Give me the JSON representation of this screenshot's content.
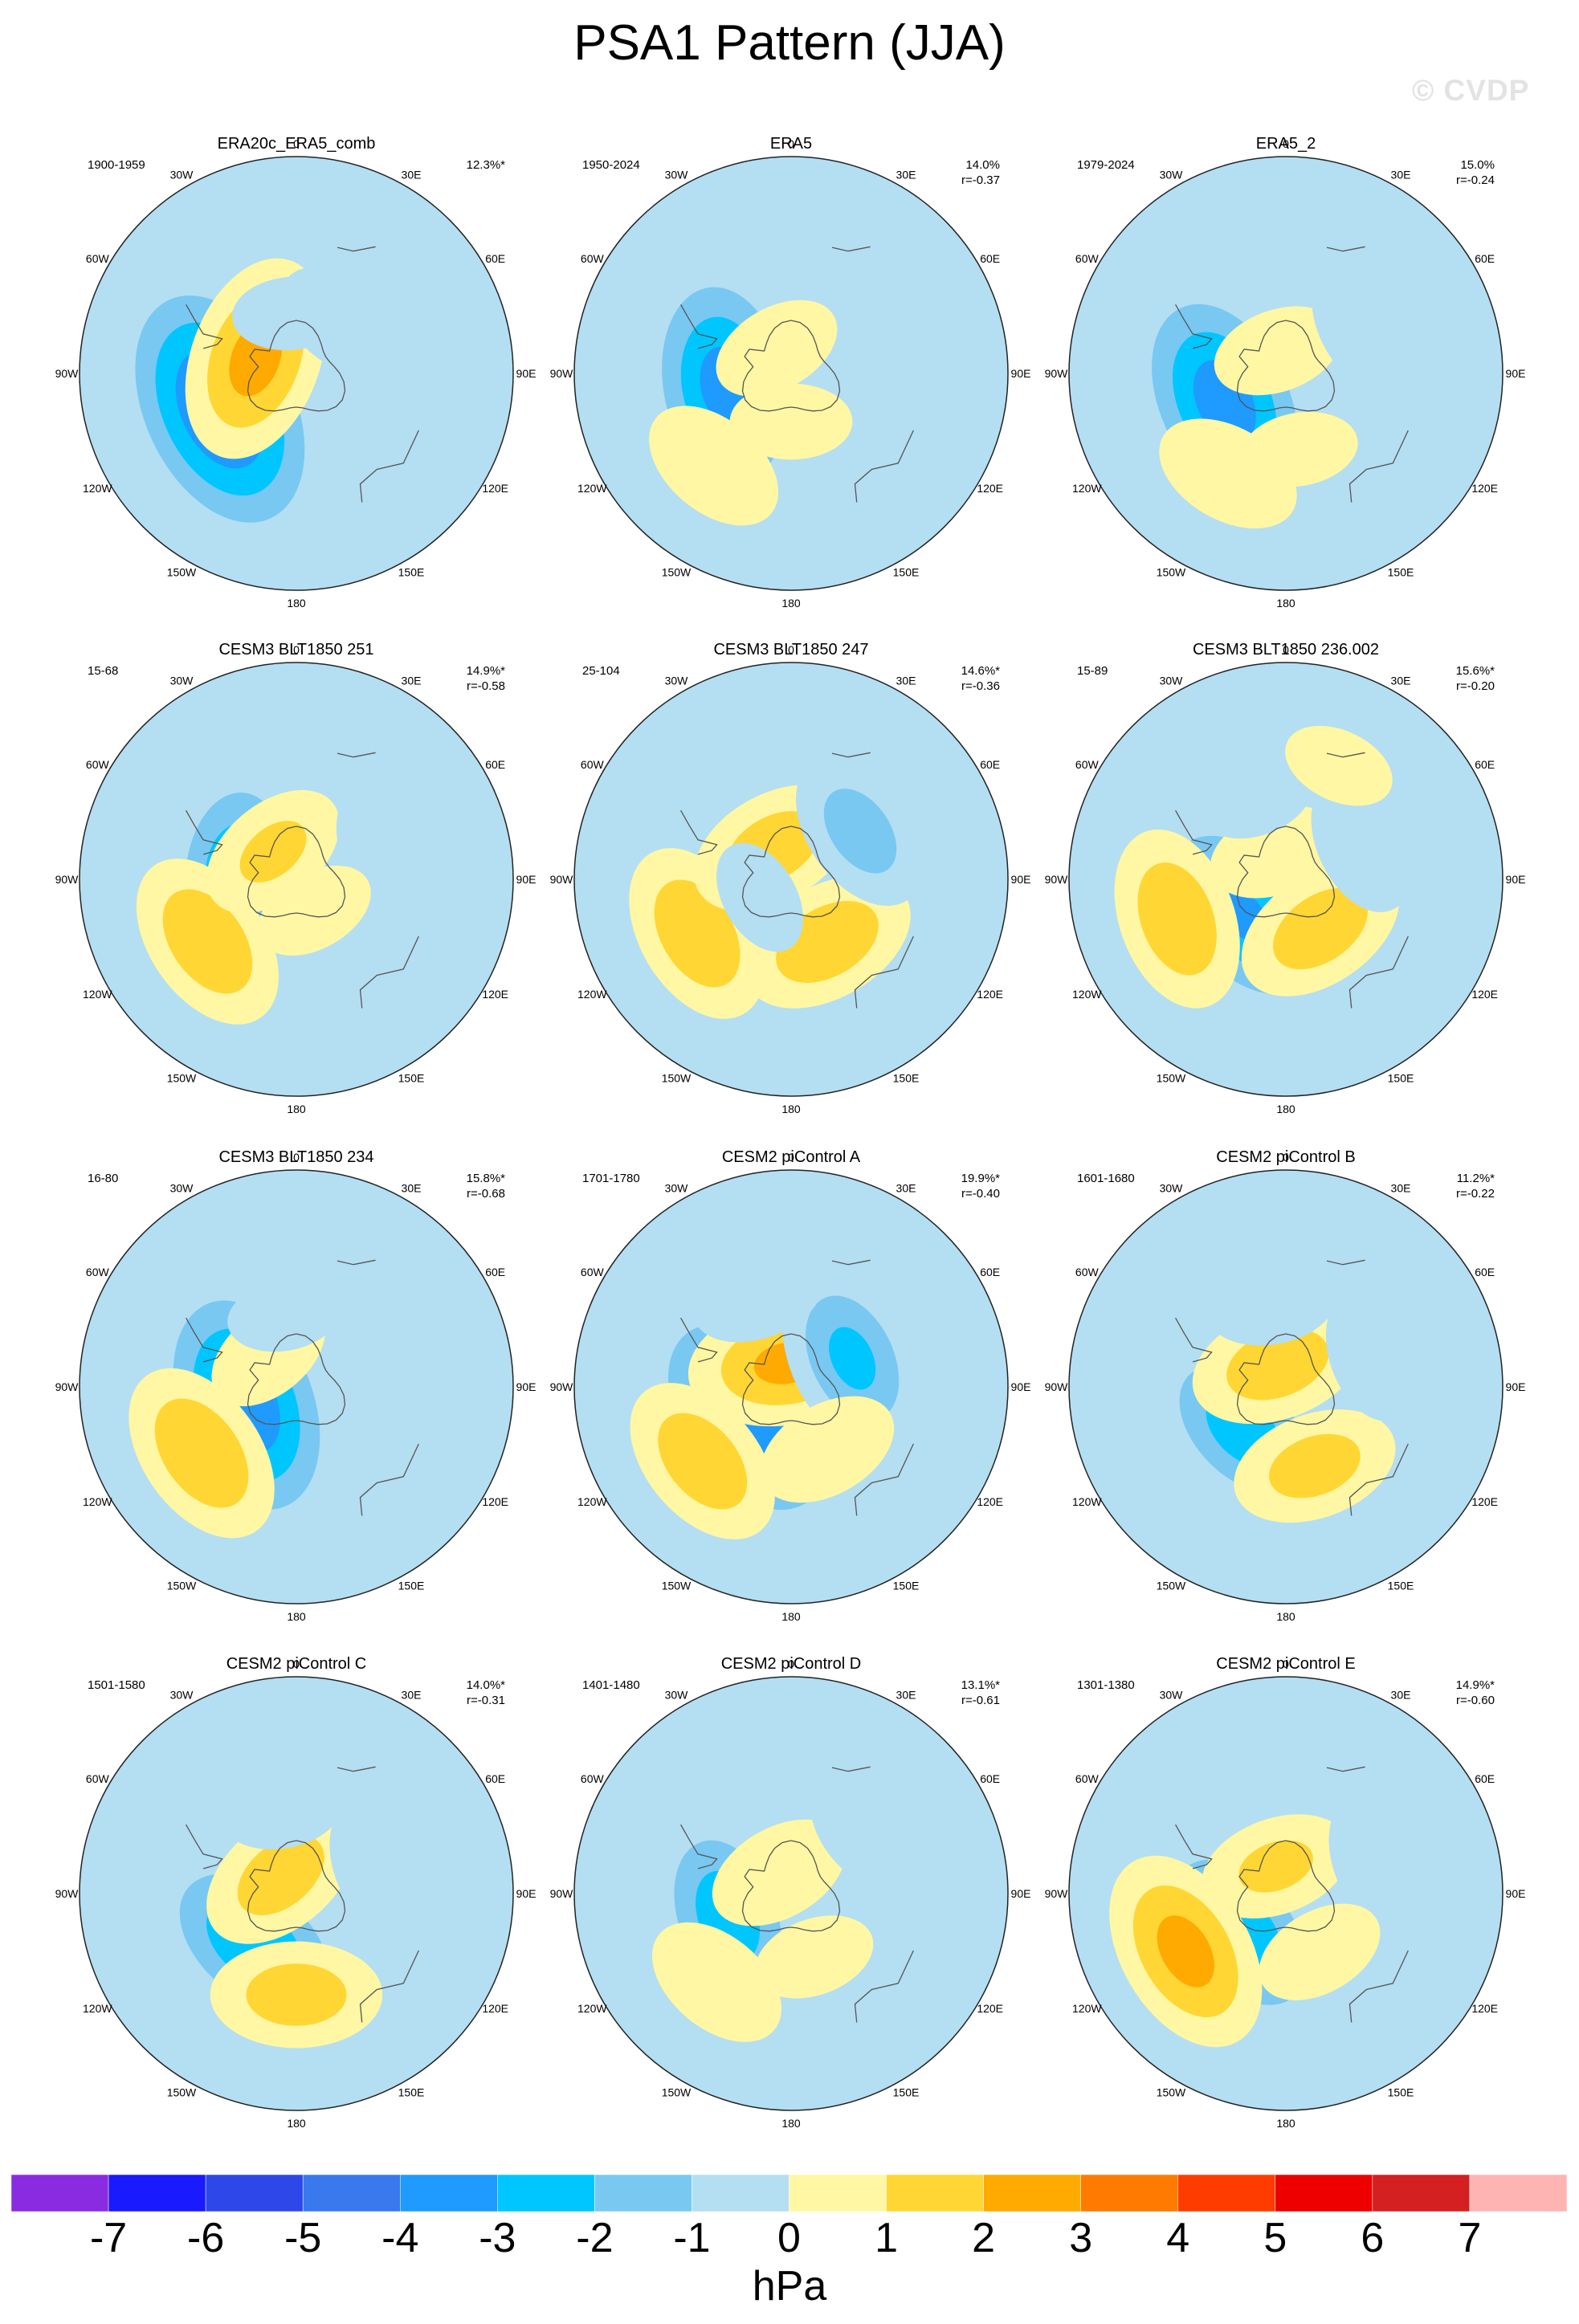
{
  "title": "PSA1 Pattern (JJA)",
  "watermark": "© CVDP",
  "chart_data": {
    "type": "contour",
    "projection": "south polar stereographic",
    "variable": "sea level pressure anomaly",
    "units": "hPa",
    "contour_levels": [
      -7,
      -6,
      -5,
      -4,
      -3,
      -2,
      -1,
      0,
      1,
      2,
      3,
      4,
      5,
      6,
      7
    ],
    "colorbar_colors": [
      "#8a2be2",
      "#1a1aff",
      "#2e47e8",
      "#3a78ee",
      "#1f9aff",
      "#00c6ff",
      "#78c8f2",
      "#b4def2",
      "#fff7a3",
      "#ffd633",
      "#ffaa00",
      "#ff7a00",
      "#ff3c00",
      "#ee0000",
      "#d42020",
      "#ffb4b4"
    ],
    "colorbar_tick_labels": [
      "-7",
      "-6",
      "-5",
      "-4",
      "-3",
      "-2",
      "-1",
      "0",
      "1",
      "2",
      "3",
      "4",
      "5",
      "6",
      "7"
    ],
    "colorbar_label": "hPa",
    "meridian_labels": {
      "deg0": "0",
      "deg30e": "30E",
      "deg60e": "60E",
      "deg90e": "90E",
      "deg120e": "120E",
      "deg150e": "150E",
      "deg180": "180",
      "deg150w": "150W",
      "deg120w": "120W",
      "deg90w": "90W",
      "deg60w": "60W",
      "deg30w": "30W"
    },
    "panels": [
      {
        "title": "ERA20c_ERA5_comb",
        "years": "1900-1959",
        "pct": "12.3%*",
        "r": "",
        "features": [
          {
            "lon": -115,
            "lat": -55,
            "peak": -5.2
          },
          {
            "lon": -70,
            "lat": -72,
            "peak": 3.2
          },
          {
            "lon": 40,
            "lat": -62,
            "peak": -1.6
          },
          {
            "lon": -5,
            "lat": -65,
            "peak": -1.2
          },
          {
            "lon": 100,
            "lat": -42,
            "peak": 0.7
          },
          {
            "lon": 170,
            "lat": -40,
            "peak": 0.6
          }
        ]
      },
      {
        "title": "ERA5",
        "years": "1950-2024",
        "pct": "14.0%",
        "r": "r=-0.37",
        "features": [
          {
            "lon": -100,
            "lat": -62,
            "peak": -4.3
          },
          {
            "lon": -140,
            "lat": -40,
            "peak": 1.9
          },
          {
            "lon": -30,
            "lat": -78,
            "peak": 1.5
          },
          {
            "lon": 70,
            "lat": -50,
            "peak": -1.5
          },
          {
            "lon": -180,
            "lat": -70,
            "peak": 1.3
          }
        ]
      },
      {
        "title": "ERA5_2",
        "years": "1979-2024",
        "pct": "15.0%",
        "r": "r=-0.24",
        "features": [
          {
            "lon": -115,
            "lat": -62,
            "peak": -4.5
          },
          {
            "lon": -150,
            "lat": -42,
            "peak": 1.9
          },
          {
            "lon": -20,
            "lat": -80,
            "peak": 1.5
          },
          {
            "lon": 60,
            "lat": -52,
            "peak": -1.8
          },
          {
            "lon": 170,
            "lat": -58,
            "peak": 1.2
          },
          {
            "lon": 10,
            "lat": -36,
            "peak": 0.7
          }
        ]
      },
      {
        "title": "CESM3 BLT1850 251",
        "years": "15-68",
        "pct": "14.9%*",
        "r": "r=-0.58",
        "features": [
          {
            "lon": -85,
            "lat": -65,
            "peak": -3.6
          },
          {
            "lon": -125,
            "lat": -45,
            "peak": 2.7
          },
          {
            "lon": -40,
            "lat": -75,
            "peak": 2.0
          },
          {
            "lon": 70,
            "lat": -52,
            "peak": -1.6
          },
          {
            "lon": 150,
            "lat": -75,
            "peak": 1.3
          },
          {
            "lon": 170,
            "lat": -48,
            "peak": 0.7
          }
        ]
      },
      {
        "title": "CESM3 BLT1850 247",
        "years": "25-104",
        "pct": "14.6%*",
        "r": "r=-0.36",
        "features": [
          {
            "lon": -150,
            "lat": -68,
            "peak": -3.2
          },
          {
            "lon": -120,
            "lat": -45,
            "peak": 2.7
          },
          {
            "lon": 150,
            "lat": -60,
            "peak": 2.6
          },
          {
            "lon": -30,
            "lat": -75,
            "peak": 2.4
          },
          {
            "lon": 55,
            "lat": -55,
            "peak": -2.3
          },
          {
            "lon": -120,
            "lat": -75,
            "peak": -1.2
          }
        ]
      },
      {
        "title": "CESM3 BLT1850 236.002",
        "years": "15-89",
        "pct": "15.6%*",
        "r": "r=-0.20",
        "features": [
          {
            "lon": -130,
            "lat": -67,
            "peak": -4.0
          },
          {
            "lon": -110,
            "lat": -42,
            "peak": 2.7
          },
          {
            "lon": 145,
            "lat": -65,
            "peak": 2.5
          },
          {
            "lon": -20,
            "lat": -78,
            "peak": 1.6
          },
          {
            "lon": 65,
            "lat": -55,
            "peak": -1.8
          },
          {
            "lon": -20,
            "lat": -55,
            "peak": -1.1
          },
          {
            "lon": 25,
            "lat": -38,
            "peak": 1.1
          }
        ]
      },
      {
        "title": "CESM3 BLT1850 234",
        "years": "16-80",
        "pct": "15.8%*",
        "r": "r=-0.68",
        "features": [
          {
            "lon": -110,
            "lat": -68,
            "peak": -4.7
          },
          {
            "lon": -125,
            "lat": -42,
            "peak": 2.8
          },
          {
            "lon": -40,
            "lat": -72,
            "peak": 1.5
          },
          {
            "lon": 110,
            "lat": -58,
            "peak": -1.4
          },
          {
            "lon": -10,
            "lat": -60,
            "peak": -1.1
          },
          {
            "lon": 170,
            "lat": -55,
            "peak": 0.7
          }
        ]
      },
      {
        "title": "CESM2 piControl A",
        "years": "1701-1780",
        "pct": "19.9%*",
        "r": "r=-0.40",
        "features": [
          {
            "lon": -125,
            "lat": -68,
            "peak": -4.5
          },
          {
            "lon": -130,
            "lat": -42,
            "peak": 2.6
          },
          {
            "lon": -10,
            "lat": -80,
            "peak": 3.0
          },
          {
            "lon": 65,
            "lat": -62,
            "peak": -3.0
          },
          {
            "lon": -20,
            "lat": -50,
            "peak": -1.6
          },
          {
            "lon": 150,
            "lat": -60,
            "peak": 1.8
          }
        ]
      },
      {
        "title": "CESM2 piControl B",
        "years": "1601-1680",
        "pct": "11.2%*",
        "r": "r=-0.22",
        "features": [
          {
            "lon": -135,
            "lat": -65,
            "peak": -3.4
          },
          {
            "lon": -20,
            "lat": -80,
            "peak": 2.5
          },
          {
            "lon": 160,
            "lat": -55,
            "peak": 2.3
          },
          {
            "lon": 70,
            "lat": -52,
            "peak": -1.6
          },
          {
            "lon": -10,
            "lat": -55,
            "peak": -1.5
          },
          {
            "lon": 30,
            "lat": -38,
            "peak": 0.8
          }
        ]
      },
      {
        "title": "CESM2 piControl C",
        "years": "1501-1580",
        "pct": "14.0%*",
        "r": "r=-0.31",
        "features": [
          {
            "lon": -140,
            "lat": -63,
            "peak": -3.8
          },
          {
            "lon": -40,
            "lat": -80,
            "peak": 2.4
          },
          {
            "lon": -180,
            "lat": -48,
            "peak": 2.4
          },
          {
            "lon": 70,
            "lat": -55,
            "peak": -1.6
          },
          {
            "lon": -10,
            "lat": -55,
            "peak": -1.3
          },
          {
            "lon": 40,
            "lat": -45,
            "peak": 0.8
          }
        ]
      },
      {
        "title": "CESM2 piControl D",
        "years": "1401-1480",
        "pct": "13.1%*",
        "r": "r=-0.61",
        "features": [
          {
            "lon": -110,
            "lat": -62,
            "peak": -3.5
          },
          {
            "lon": -140,
            "lat": -42,
            "peak": 1.9
          },
          {
            "lon": -30,
            "lat": -80,
            "peak": 1.8
          },
          {
            "lon": 50,
            "lat": -50,
            "peak": -1.6
          },
          {
            "lon": 160,
            "lat": -62,
            "peak": 1.3
          }
        ]
      },
      {
        "title": "CESM2 piControl E",
        "years": "1301-1380",
        "pct": "14.9%*",
        "r": "r=-0.60",
        "features": [
          {
            "lon": -130,
            "lat": -65,
            "peak": -3.7
          },
          {
            "lon": -120,
            "lat": -42,
            "peak": 3.2
          },
          {
            "lon": -20,
            "lat": -78,
            "peak": 2.0
          },
          {
            "lon": 70,
            "lat": -50,
            "peak": -1.7
          },
          {
            "lon": 150,
            "lat": -62,
            "peak": 1.5
          }
        ]
      }
    ]
  }
}
